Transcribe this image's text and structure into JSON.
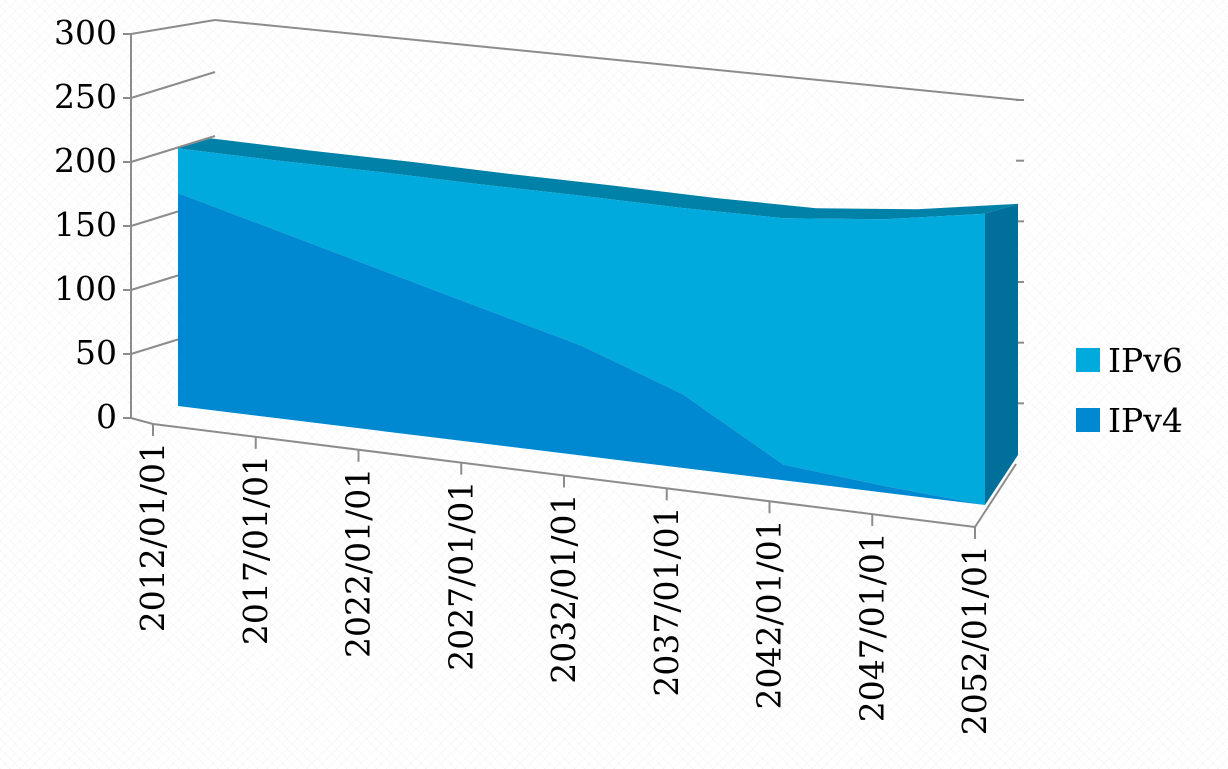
{
  "chart_data": {
    "type": "area",
    "stacked": true,
    "three_d": true,
    "categories": [
      "2012/01/01",
      "2017/01/01",
      "2022/01/01",
      "2027/01/01",
      "2032/01/01",
      "2037/01/01",
      "2042/01/01",
      "2047/01/01",
      "2052/01/01"
    ],
    "series": [
      {
        "name": "IPv6",
        "values": [
          40,
          63,
          87,
          110,
          134,
          166,
          220,
          238,
          260
        ],
        "color": "#00aadd"
      },
      {
        "name": "IPv4",
        "values": [
          190,
          167,
          144,
          121,
          98,
          66,
          14,
          6,
          0
        ],
        "color": "#0088d1"
      }
    ],
    "y_ticks": [
      "0",
      "50",
      "100",
      "150",
      "200",
      "250",
      "300"
    ],
    "ylim": [
      0,
      300
    ],
    "legend_position": "right",
    "colors": {
      "ipv6_front": "#00aadd",
      "ipv4_front": "#0088d1",
      "top_edge": "#0081a8",
      "right_side": "#00709a",
      "grid_line": "#8c8c8c"
    }
  }
}
